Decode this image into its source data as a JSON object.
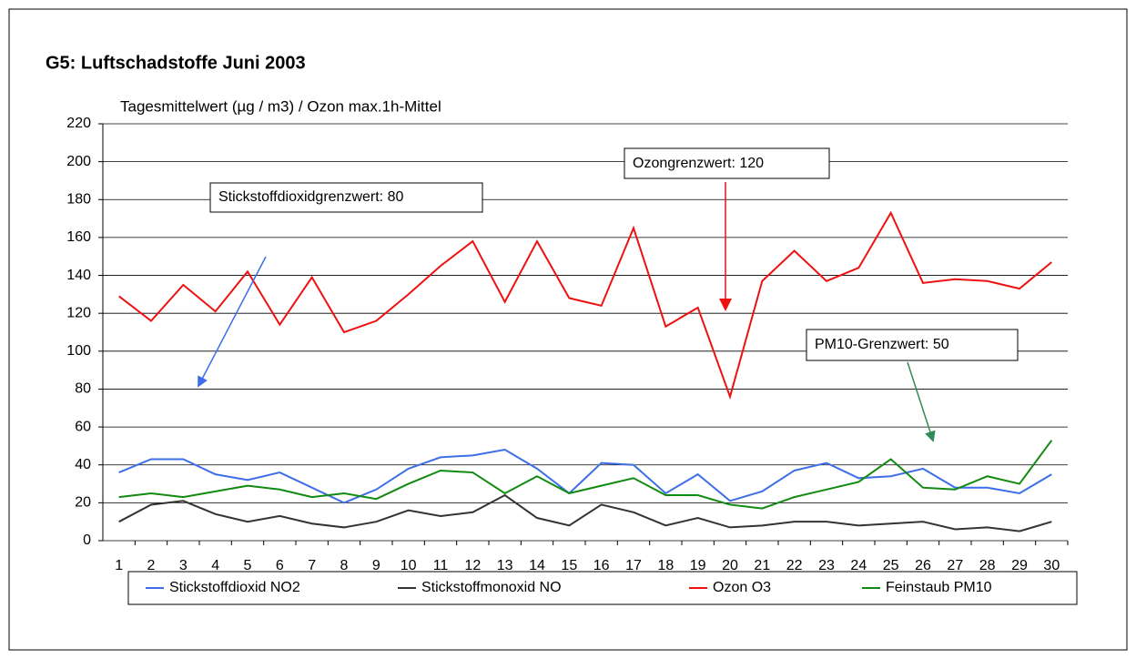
{
  "chart_data": {
    "type": "line",
    "title": "G5: Luftschadstoffe Juni 2003",
    "y_label": "Tagesmittelwert (µg / m3) / Ozon max.1h-Mittel",
    "categories": [
      "1",
      "2",
      "3",
      "4",
      "5",
      "6",
      "7",
      "8",
      "9",
      "10",
      "11",
      "12",
      "13",
      "14",
      "15",
      "16",
      "17",
      "18",
      "19",
      "20",
      "21",
      "22",
      "23",
      "24",
      "25",
      "26",
      "27",
      "28",
      "29",
      "30"
    ],
    "series": [
      {
        "name": "Stickstoffdioxid NO2",
        "color": "#3d6ee8",
        "values": [
          36,
          43,
          43,
          35,
          32,
          36,
          28,
          20,
          27,
          38,
          44,
          45,
          48,
          38,
          25,
          41,
          40,
          25,
          35,
          21,
          26,
          37,
          41,
          33,
          34,
          38,
          28,
          28,
          25,
          35
        ]
      },
      {
        "name": "Stickstoffmonoxid NO",
        "color": "#333333",
        "values": [
          10,
          19,
          21,
          14,
          10,
          13,
          9,
          7,
          10,
          16,
          13,
          15,
          24,
          12,
          8,
          19,
          15,
          8,
          12,
          7,
          8,
          10,
          10,
          8,
          9,
          10,
          6,
          7,
          5,
          10
        ]
      },
      {
        "name": "Ozon O3",
        "color": "#ee1111",
        "values": [
          129,
          116,
          135,
          121,
          142,
          114,
          139,
          110,
          116,
          130,
          145,
          158,
          126,
          158,
          128,
          124,
          165,
          113,
          123,
          76,
          137,
          153,
          137,
          144,
          173,
          136,
          138,
          137,
          133,
          147
        ]
      },
      {
        "name": "Feinstaub PM10",
        "color": "#108a10",
        "values": [
          23,
          25,
          23,
          26,
          29,
          27,
          23,
          25,
          22,
          30,
          37,
          36,
          25,
          34,
          25,
          29,
          33,
          24,
          24,
          19,
          17,
          23,
          27,
          31,
          43,
          28,
          27,
          34,
          30,
          53
        ]
      }
    ],
    "annotations": [
      "Stickstoffdioxidgrenzwert: 80",
      "Ozongrenzwert: 120",
      "PM10-Grenzwert: 50"
    ],
    "ylim": [
      0,
      220
    ],
    "yticks": [
      0,
      20,
      40,
      60,
      80,
      100,
      120,
      140,
      160,
      180,
      200,
      220
    ],
    "grid": true
  }
}
